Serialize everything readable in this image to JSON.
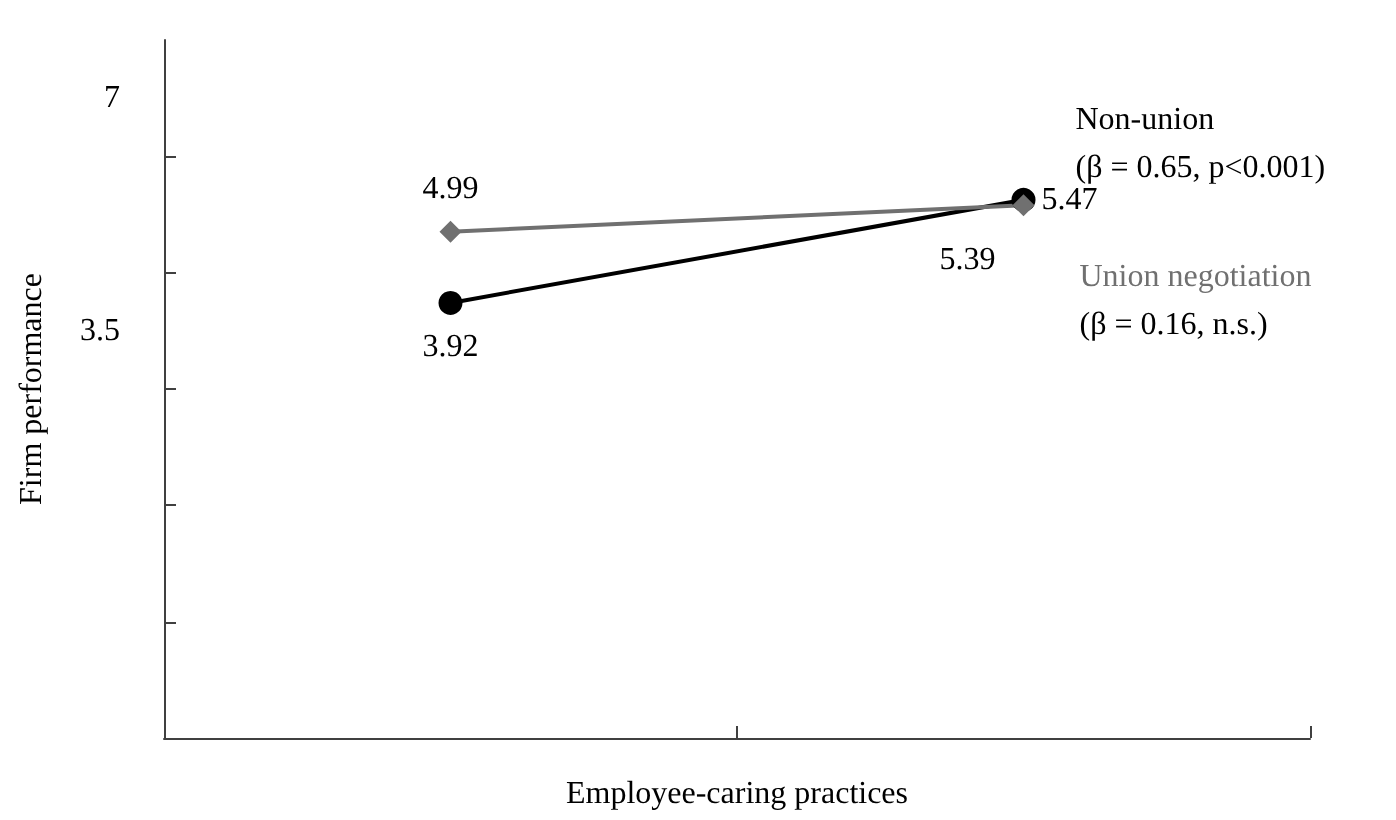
{
  "chart_data": {
    "type": "line",
    "xlabel": "Employee-caring practices",
    "ylabel": "Firm performance",
    "categories": [
      null,
      null
    ],
    "series": [
      {
        "name": "Non-union",
        "color": "#000000",
        "marker": "circle",
        "values": [
          3.92,
          5.47
        ]
      },
      {
        "name": "Union negotiation",
        "color": "#707070",
        "marker": "diamond",
        "values": [
          4.99,
          5.39
        ]
      }
    ],
    "annotations": [
      "(β = 0.65, p<0.001)",
      "(β = 0.16, n.s.)"
    ],
    "data_labels": true,
    "legend": false,
    "grid": false,
    "ylim": [
      -2.625,
      7.875
    ],
    "yticks": [
      {
        "value": 6.125,
        "label": null
      },
      7,
      {
        "value": 4.375,
        "label": null
      },
      3.5,
      {
        "value": 2.625,
        "label": null
      },
      {
        "value": 0.875,
        "label": null
      },
      {
        "value": -0.875,
        "label": null
      }
    ]
  }
}
